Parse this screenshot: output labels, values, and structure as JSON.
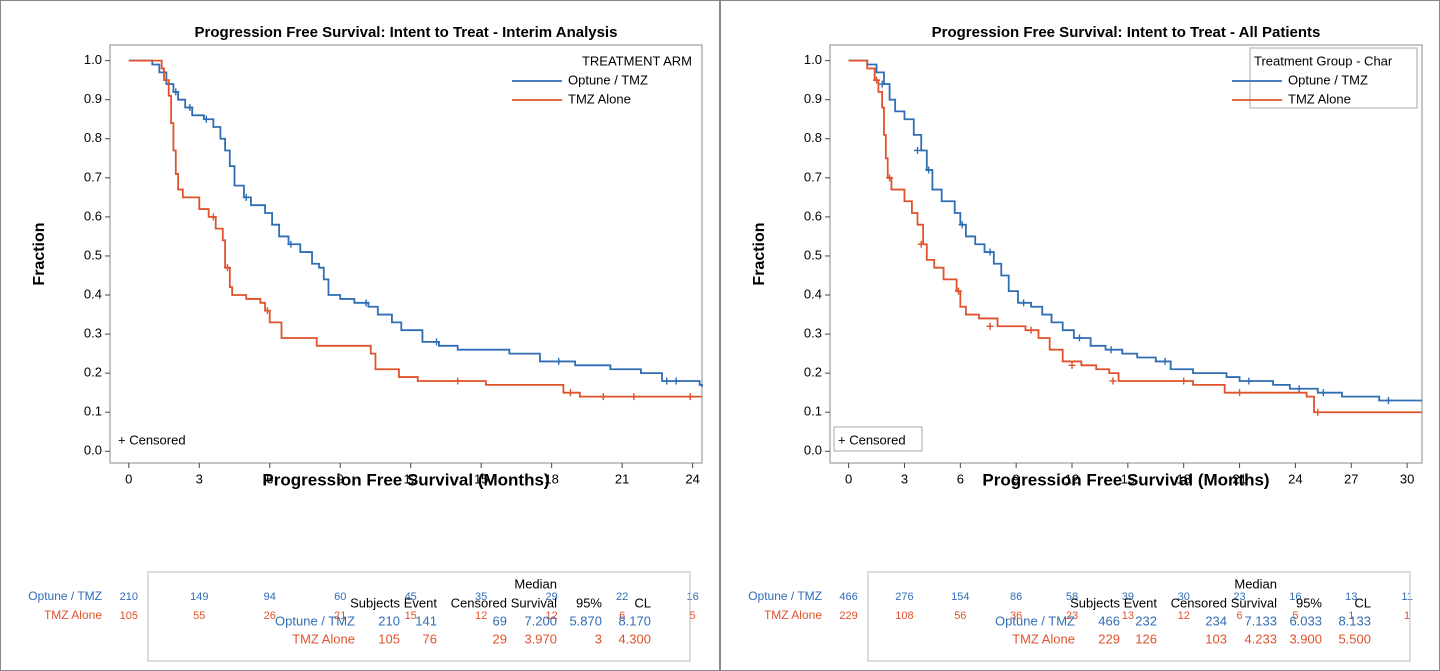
{
  "chart_data": [
    {
      "type": "step",
      "title": "Progression Free Survival: Intent to Treat - Interim Analysis",
      "x_label": "Progression Free Survival (Months)",
      "y_label": "Fraction",
      "xlim": [
        -0.8,
        24.4
      ],
      "ylim": [
        -0.03,
        1.04
      ],
      "xticks": [
        0,
        3,
        6,
        9,
        12,
        15,
        18,
        21,
        24
      ],
      "yticks": [
        {
          "value": 0,
          "label": "0.0"
        },
        0.1,
        0.2,
        0.3,
        0.4,
        0.5,
        0.6,
        0.7,
        0.8,
        0.9,
        {
          "value": 1,
          "label": "1.0"
        }
      ],
      "legend": {
        "title": "TREATMENT ARM",
        "position": "upper right",
        "box": false
      },
      "censor_label": "+ Censored",
      "censor_box": false,
      "series": [
        {
          "name": "Optune / TMZ",
          "color": "#2f6db5",
          "x": [
            0,
            1.0,
            1.3,
            1.6,
            1.9,
            2.1,
            2.4,
            2.7,
            3.2,
            3.6,
            3.9,
            4.1,
            4.3,
            4.5,
            4.9,
            5.2,
            5.8,
            6.1,
            6.4,
            6.8,
            7.3,
            7.8,
            8.1,
            8.3,
            8.5,
            9.0,
            9.6,
            10.2,
            10.6,
            11.2,
            11.6,
            12.5,
            13.2,
            14.0,
            16.2,
            17.5,
            19.0,
            20.5,
            21.8,
            22.7,
            24.3,
            24.4
          ],
          "values": [
            1.0,
            0.99,
            0.97,
            0.94,
            0.92,
            0.9,
            0.88,
            0.86,
            0.85,
            0.83,
            0.8,
            0.77,
            0.73,
            0.68,
            0.65,
            0.63,
            0.61,
            0.58,
            0.55,
            0.53,
            0.51,
            0.48,
            0.47,
            0.44,
            0.4,
            0.39,
            0.38,
            0.37,
            0.35,
            0.33,
            0.31,
            0.28,
            0.27,
            0.26,
            0.25,
            0.23,
            0.22,
            0.21,
            0.2,
            0.18,
            0.17,
            0.165
          ],
          "censored_x": [
            2.0,
            2.6,
            3.3,
            5.0,
            6.9,
            10.1,
            13.1,
            18.3,
            22.9,
            23.3
          ],
          "censored_values": [
            0.92,
            0.88,
            0.85,
            0.65,
            0.53,
            0.38,
            0.28,
            0.23,
            0.18,
            0.18
          ],
          "at_risk": [
            210,
            149,
            94,
            60,
            45,
            35,
            29,
            22,
            16
          ]
        },
        {
          "name": "TMZ Alone",
          "color": "#e0522b",
          "x": [
            0,
            1.4,
            1.5,
            1.7,
            1.8,
            1.9,
            2.0,
            2.1,
            2.3,
            3.0,
            3.4,
            3.7,
            4.0,
            4.1,
            4.3,
            4.4,
            5.0,
            5.6,
            5.8,
            6.0,
            6.5,
            8.0,
            10.3,
            10.5,
            11.5,
            12.3,
            15.2,
            18.5,
            19.2,
            24.4
          ],
          "values": [
            1.0,
            0.98,
            0.95,
            0.91,
            0.84,
            0.77,
            0.71,
            0.67,
            0.65,
            0.62,
            0.6,
            0.57,
            0.54,
            0.47,
            0.42,
            0.4,
            0.39,
            0.38,
            0.36,
            0.33,
            0.29,
            0.27,
            0.25,
            0.21,
            0.19,
            0.18,
            0.17,
            0.15,
            0.14,
            0.14
          ],
          "censored_x": [
            3.6,
            4.2,
            5.9,
            14.0,
            18.8,
            20.2,
            21.5,
            23.9
          ],
          "censored_values": [
            0.6,
            0.47,
            0.36,
            0.18,
            0.15,
            0.14,
            0.14,
            0.14
          ],
          "at_risk": [
            105,
            55,
            26,
            21,
            15,
            12,
            12,
            6,
            5
          ]
        }
      ],
      "summary": {
        "header_top": "Median",
        "columns": [
          "Subjects",
          "Event",
          "Censored",
          "Survival",
          "95%",
          "CL"
        ],
        "rows": [
          [
            210,
            141,
            69,
            "7.200",
            "5.870",
            "8.170"
          ],
          [
            105,
            76,
            29,
            "3.970",
            3,
            "4.300"
          ]
        ]
      }
    },
    {
      "type": "step",
      "title": "Progression Free Survival: Intent to Treat - All Patients",
      "x_label": "Progression Free Survival (Months)",
      "y_label": "Fraction",
      "xlim": [
        -1,
        30.8
      ],
      "ylim": [
        -0.03,
        1.04
      ],
      "xticks": [
        0,
        3,
        6,
        9,
        12,
        15,
        18,
        21,
        24,
        27,
        30
      ],
      "yticks": [
        {
          "value": 0,
          "label": "0.0"
        },
        0.1,
        0.2,
        0.3,
        0.4,
        0.5,
        0.6,
        0.7,
        0.8,
        0.9,
        {
          "value": 1,
          "label": "1.0"
        }
      ],
      "legend": {
        "title": "Treatment Group - Char",
        "position": "upper right",
        "box": true
      },
      "censor_label": "+ Censored",
      "censor_box": true,
      "series": [
        {
          "name": "Optune / TMZ",
          "color": "#2f6db5",
          "x": [
            0,
            1.0,
            1.5,
            1.9,
            2.2,
            2.5,
            3.0,
            3.5,
            3.9,
            4.2,
            4.5,
            5.0,
            5.7,
            6.0,
            6.3,
            6.8,
            7.3,
            7.8,
            8.2,
            8.6,
            9.1,
            9.8,
            10.4,
            10.9,
            11.5,
            12.1,
            13.0,
            13.8,
            14.7,
            15.5,
            16.5,
            17.3,
            18.5,
            20.3,
            21.0,
            22.8,
            23.7,
            25.2,
            26.5,
            28.5,
            30.8
          ],
          "values": [
            1.0,
            0.99,
            0.97,
            0.94,
            0.9,
            0.87,
            0.85,
            0.81,
            0.77,
            0.72,
            0.67,
            0.64,
            0.61,
            0.58,
            0.55,
            0.53,
            0.51,
            0.48,
            0.45,
            0.41,
            0.38,
            0.37,
            0.35,
            0.33,
            0.31,
            0.29,
            0.27,
            0.26,
            0.25,
            0.24,
            0.23,
            0.21,
            0.2,
            0.19,
            0.18,
            0.17,
            0.16,
            0.15,
            0.14,
            0.13,
            0.13
          ],
          "censored_x": [
            1.8,
            3.7,
            4.3,
            6.1,
            7.6,
            9.4,
            12.4,
            14.1,
            17.0,
            21.5,
            24.2,
            25.5,
            29.0
          ],
          "censored_values": [
            0.94,
            0.77,
            0.72,
            0.58,
            0.51,
            0.38,
            0.29,
            0.26,
            0.23,
            0.18,
            0.16,
            0.15,
            0.13
          ],
          "at_risk": [
            466,
            276,
            154,
            86,
            58,
            39,
            30,
            23,
            16,
            13,
            11
          ]
        },
        {
          "name": "TMZ Alone",
          "color": "#e0522b",
          "x": [
            0,
            1.0,
            1.4,
            1.6,
            1.8,
            1.9,
            2.0,
            2.1,
            2.3,
            3.0,
            3.4,
            3.7,
            4.0,
            4.2,
            4.6,
            5.1,
            5.8,
            6.0,
            6.3,
            7.0,
            8.0,
            9.5,
            10.2,
            10.8,
            11.5,
            12.5,
            13.3,
            14.0,
            14.5,
            16.5,
            18.5,
            20.2,
            24.6,
            25.0,
            30.8
          ],
          "values": [
            1.0,
            0.98,
            0.95,
            0.92,
            0.88,
            0.81,
            0.75,
            0.7,
            0.67,
            0.64,
            0.61,
            0.58,
            0.53,
            0.49,
            0.47,
            0.44,
            0.41,
            0.37,
            0.35,
            0.34,
            0.32,
            0.31,
            0.29,
            0.26,
            0.23,
            0.22,
            0.21,
            0.2,
            0.18,
            0.18,
            0.17,
            0.15,
            0.14,
            0.1,
            0.1
          ],
          "censored_x": [
            1.5,
            2.2,
            3.9,
            5.9,
            7.6,
            9.8,
            12.0,
            14.2,
            18.0,
            21.0,
            25.2
          ],
          "censored_values": [
            0.95,
            0.7,
            0.53,
            0.41,
            0.32,
            0.31,
            0.22,
            0.18,
            0.18,
            0.15,
            0.1
          ],
          "at_risk": [
            229,
            108,
            56,
            36,
            23,
            13,
            12,
            6,
            5,
            1,
            1
          ]
        }
      ],
      "summary": {
        "header_top": "Median",
        "columns": [
          "Subjects",
          "Event",
          "Censored",
          "Survival",
          "95%",
          "CL"
        ],
        "rows": [
          [
            466,
            232,
            234,
            "7.133",
            "6.033",
            "8.133"
          ],
          [
            229,
            126,
            103,
            "4.233",
            "3.900",
            "5.500"
          ]
        ]
      }
    }
  ]
}
